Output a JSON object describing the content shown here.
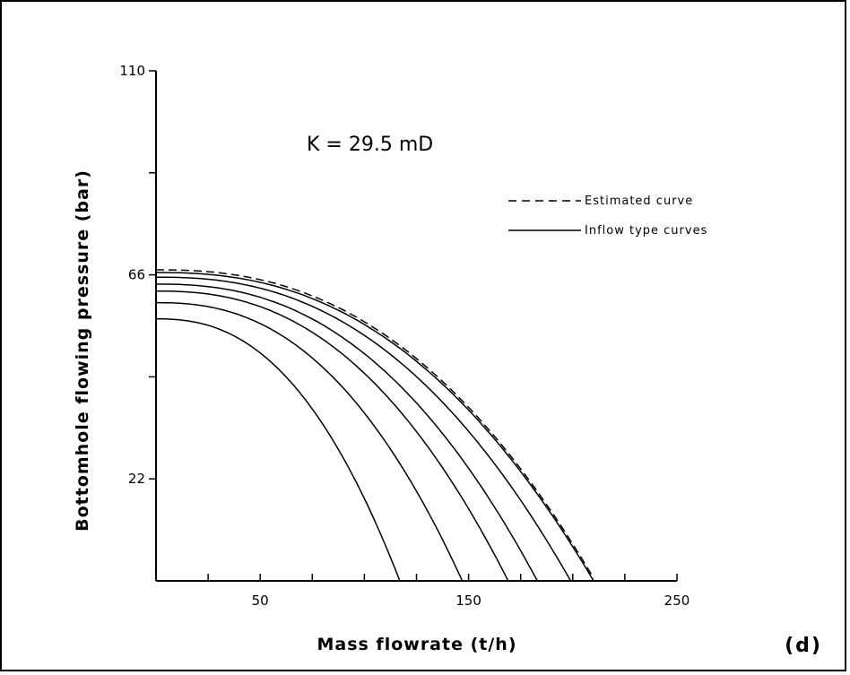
{
  "chart_data": {
    "type": "line",
    "annotation": "K = 29.5 mD",
    "xlabel": "Mass flowrate (t/h)",
    "ylabel": "Bottomhole flowing pressure (bar)",
    "panel_label": "(d)",
    "xlim": [
      0,
      250
    ],
    "ylim": [
      0,
      110
    ],
    "x_ticks": [
      0,
      25,
      50,
      75,
      100,
      125,
      150,
      175,
      200,
      225,
      250
    ],
    "x_tick_labels": [
      "50",
      "150",
      "250"
    ],
    "x_tick_label_values": [
      50,
      150,
      250
    ],
    "y_ticks": [
      0,
      22,
      44,
      66,
      88,
      110
    ],
    "y_tick_labels": [
      "110",
      "66",
      "22"
    ],
    "y_tick_label_values": [
      110,
      66,
      22
    ],
    "grid": false,
    "legend": {
      "placement": "top-right",
      "entries": [
        {
          "label": "Estimated curve",
          "style": "dashed"
        },
        {
          "label": "Inflow type curves",
          "style": "solid"
        }
      ]
    },
    "series": [
      {
        "style": "dashed",
        "p0": 66.5,
        "qmax": 210
      },
      {
        "style": "solid",
        "p0": 66.5,
        "qmax": 210
      },
      {
        "style": "solid",
        "p0": 65.5,
        "qmax": 199
      },
      {
        "style": "solid",
        "p0": 64,
        "qmax": 183
      },
      {
        "style": "solid",
        "p0": 62.5,
        "qmax": 169
      },
      {
        "style": "solid",
        "p0": 60,
        "qmax": 147
      },
      {
        "style": "solid",
        "p0": 56.5,
        "qmax": 117
      }
    ]
  }
}
